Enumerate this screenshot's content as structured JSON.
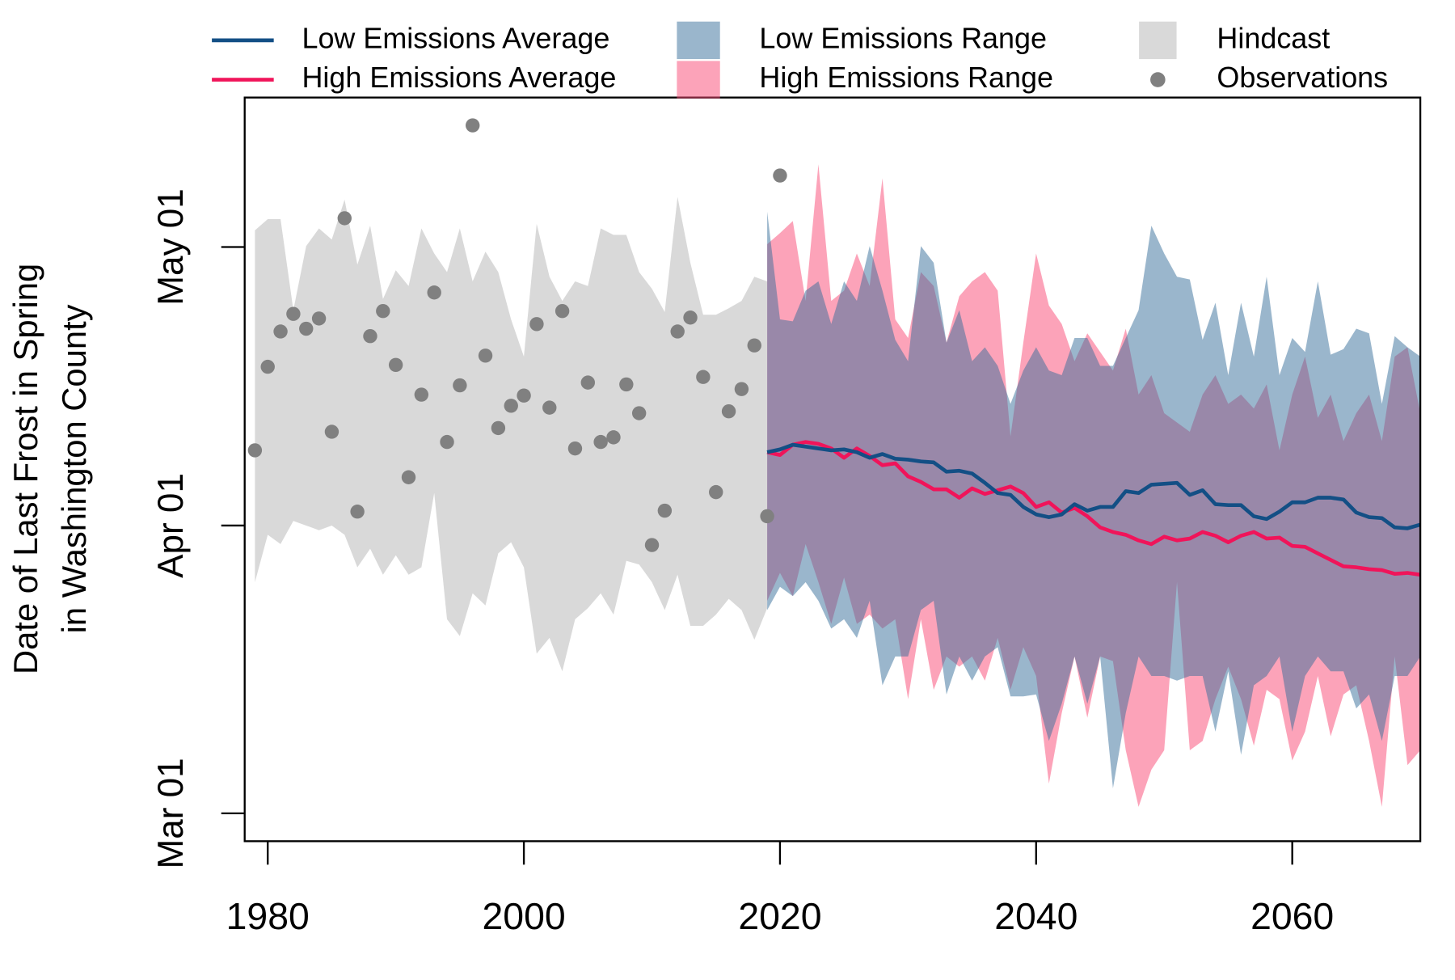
{
  "chart_data": {
    "type": "line",
    "ylabel": [
      "Date of Last Frost in Spring",
      "in Washington County"
    ],
    "xlim": [
      1978.2,
      2070
    ],
    "xticks": [
      1980,
      2000,
      2020,
      2040,
      2060
    ],
    "ylim": [
      57,
      137.1
    ],
    "yticks": [
      {
        "value": 60,
        "label": "Mar 01"
      },
      {
        "value": 91,
        "label": "Apr 01"
      },
      {
        "value": 121,
        "label": "May 01"
      }
    ],
    "series": [
      {
        "name": "Low Emissions Average",
        "type": "line",
        "color": "#134f85",
        "x": [
          2019,
          2020,
          2021,
          2022,
          2023,
          2024,
          2025,
          2026,
          2027,
          2028,
          2029,
          2030,
          2031,
          2032,
          2033,
          2034,
          2035,
          2036,
          2037,
          2038,
          2039,
          2040,
          2041,
          2042,
          2043,
          2044,
          2045,
          2046,
          2047,
          2048,
          2049,
          2050,
          2051,
          2052,
          2053,
          2054,
          2055,
          2056,
          2057,
          2058,
          2059,
          2060,
          2061,
          2062,
          2063,
          2064,
          2065,
          2066,
          2067,
          2068,
          2069,
          2070
        ],
        "values": [
          98.9,
          99.2,
          99.7,
          99.5,
          99.3,
          99.1,
          99.2,
          98.9,
          98.3,
          98.7,
          98.2,
          98.1,
          97.9,
          97.8,
          96.8,
          96.9,
          96.6,
          95.6,
          94.5,
          94.3,
          93.0,
          92.2,
          91.9,
          92.2,
          93.3,
          92.6,
          93.0,
          93.0,
          94.7,
          94.5,
          95.4,
          95.5,
          95.6,
          94.3,
          94.8,
          93.3,
          93.2,
          93.2,
          92.0,
          91.7,
          92.5,
          93.5,
          93.5,
          94.0,
          94.0,
          93.8,
          92.4,
          91.9,
          91.8,
          90.8,
          90.7,
          91.1
        ]
      },
      {
        "name": "High Emissions Average",
        "type": "line",
        "color": "#f0145a",
        "x": [
          2019,
          2020,
          2021,
          2022,
          2023,
          2024,
          2025,
          2026,
          2027,
          2028,
          2029,
          2030,
          2031,
          2032,
          2033,
          2034,
          2035,
          2036,
          2037,
          2038,
          2039,
          2040,
          2041,
          2042,
          2043,
          2044,
          2045,
          2046,
          2047,
          2048,
          2049,
          2050,
          2051,
          2052,
          2053,
          2054,
          2055,
          2056,
          2057,
          2058,
          2059,
          2060,
          2061,
          2062,
          2063,
          2064,
          2065,
          2066,
          2067,
          2068,
          2069,
          2070
        ],
        "values": [
          98.9,
          98.6,
          99.7,
          100.0,
          99.8,
          99.3,
          98.3,
          99.3,
          98.5,
          97.5,
          97.7,
          96.3,
          95.7,
          94.9,
          94.9,
          94.0,
          95.0,
          94.4,
          94.8,
          95.2,
          94.5,
          93.0,
          93.5,
          92.4,
          92.9,
          92.0,
          90.8,
          90.3,
          90.0,
          89.4,
          89.0,
          89.8,
          89.4,
          89.6,
          90.3,
          89.9,
          89.2,
          89.9,
          90.3,
          89.6,
          89.7,
          88.8,
          88.7,
          88.0,
          87.3,
          86.6,
          86.5,
          86.3,
          86.2,
          85.8,
          85.9,
          85.7
        ]
      },
      {
        "name": "Low Emissions Range",
        "type": "band",
        "color": "#356d99",
        "alpha": 0.5,
        "x": [
          2019,
          2020,
          2021,
          2022,
          2023,
          2024,
          2025,
          2026,
          2027,
          2028,
          2029,
          2030,
          2031,
          2032,
          2033,
          2034,
          2035,
          2036,
          2037,
          2038,
          2039,
          2040,
          2041,
          2042,
          2043,
          2044,
          2045,
          2046,
          2047,
          2048,
          2049,
          2050,
          2051,
          2052,
          2053,
          2054,
          2055,
          2056,
          2057,
          2058,
          2059,
          2060,
          2061,
          2062,
          2063,
          2064,
          2065,
          2066,
          2067,
          2068,
          2069,
          2070
        ],
        "upper": [
          124.8,
          113.2,
          113.0,
          116.3,
          117.3,
          112.7,
          117.3,
          115.2,
          121.1,
          116.3,
          111.0,
          108.7,
          121.1,
          119.3,
          110.7,
          114.2,
          108.7,
          110.2,
          108.2,
          104.1,
          107.7,
          110.2,
          107.7,
          107.2,
          111.2,
          111.2,
          108.2,
          108.2,
          111.2,
          114.2,
          123.3,
          120.3,
          117.8,
          117.5,
          111.0,
          115.0,
          107.2,
          115.0,
          109.2,
          117.8,
          107.2,
          111.2,
          109.7,
          117.3,
          109.4,
          110.0,
          112.2,
          111.7,
          104.1,
          111.4,
          110.2,
          109.2
        ],
        "lower": [
          81.9,
          84.4,
          83.4,
          84.9,
          82.9,
          79.9,
          80.9,
          78.9,
          82.9,
          73.8,
          76.9,
          76.9,
          81.9,
          82.9,
          72.8,
          76.9,
          74.3,
          76.9,
          77.9,
          72.6,
          72.6,
          72.8,
          67.8,
          71.8,
          76.9,
          71.8,
          76.9,
          62.7,
          70.8,
          76.9,
          74.8,
          74.8,
          74.3,
          74.8,
          74.8,
          68.8,
          75.3,
          66.3,
          73.8,
          74.8,
          76.9,
          68.8,
          74.8,
          76.9,
          75.3,
          75.3,
          71.3,
          72.8,
          67.8,
          74.8,
          74.8,
          76.9
        ]
      },
      {
        "name": "High Emissions Range",
        "type": "band",
        "color": "#f94773",
        "alpha": 0.5,
        "x": [
          2019,
          2020,
          2021,
          2022,
          2023,
          2024,
          2025,
          2026,
          2027,
          2028,
          2029,
          2030,
          2031,
          2032,
          2033,
          2034,
          2035,
          2036,
          2037,
          2038,
          2039,
          2040,
          2041,
          2042,
          2043,
          2044,
          2045,
          2046,
          2047,
          2048,
          2049,
          2050,
          2051,
          2052,
          2053,
          2054,
          2055,
          2056,
          2057,
          2058,
          2059,
          2060,
          2061,
          2062,
          2063,
          2064,
          2065,
          2066,
          2067,
          2068,
          2069,
          2070
        ],
        "upper": [
          121.3,
          122.5,
          123.8,
          115.2,
          129.9,
          115.2,
          116.3,
          120.3,
          116.8,
          128.4,
          113.2,
          111.2,
          118.3,
          116.8,
          110.7,
          115.7,
          117.3,
          118.3,
          116.3,
          100.6,
          110.7,
          120.3,
          114.7,
          112.7,
          108.7,
          111.7,
          109.7,
          107.7,
          112.2,
          105.1,
          107.2,
          103.1,
          102.1,
          101.1,
          105.1,
          107.2,
          104.1,
          105.1,
          103.6,
          106.2,
          99.1,
          105.1,
          109.2,
          102.6,
          105.1,
          100.1,
          103.1,
          105.1,
          100.1,
          109.2,
          110.2,
          103.1
        ],
        "lower": [
          82.9,
          85.9,
          83.4,
          89.0,
          84.9,
          80.4,
          85.4,
          80.4,
          81.4,
          79.9,
          80.9,
          72.3,
          80.9,
          73.3,
          76.9,
          75.8,
          76.9,
          74.3,
          78.9,
          73.3,
          77.9,
          74.8,
          63.2,
          70.8,
          76.9,
          70.3,
          76.9,
          76.4,
          66.8,
          60.7,
          64.7,
          66.8,
          84.9,
          66.8,
          67.8,
          72.3,
          75.8,
          72.3,
          67.3,
          73.3,
          72.3,
          65.7,
          68.8,
          74.8,
          68.3,
          72.8,
          73.8,
          67.8,
          60.7,
          76.9,
          65.2,
          66.8
        ]
      },
      {
        "name": "Hindcast",
        "type": "band",
        "color": "#d9d9d9",
        "alpha": 1,
        "x": [
          1979,
          1980,
          1981,
          1982,
          1983,
          1984,
          1985,
          1986,
          1987,
          1988,
          1989,
          1990,
          1991,
          1992,
          1993,
          1994,
          1995,
          1996,
          1997,
          1998,
          1999,
          2000,
          2001,
          2002,
          2003,
          2004,
          2005,
          2006,
          2007,
          2008,
          2009,
          2010,
          2011,
          2012,
          2013,
          2014,
          2015,
          2016,
          2017,
          2018,
          2019
        ],
        "upper": [
          122.8,
          124.0,
          124.0,
          114.2,
          121.1,
          123.0,
          121.8,
          126.1,
          119.1,
          123.3,
          115.4,
          118.5,
          116.8,
          123.0,
          120.3,
          118.3,
          123.0,
          117.3,
          120.5,
          118.3,
          113.2,
          109.2,
          123.5,
          117.8,
          115.2,
          117.3,
          116.8,
          123.0,
          122.3,
          122.3,
          118.3,
          116.5,
          114.0,
          126.4,
          119.3,
          113.7,
          113.7,
          114.4,
          115.2,
          117.8,
          117.3
        ],
        "lower": [
          84.9,
          90.0,
          89.0,
          91.5,
          91.0,
          90.5,
          91.0,
          90.0,
          86.5,
          88.5,
          85.7,
          87.8,
          85.7,
          86.5,
          94.5,
          80.9,
          79.1,
          83.7,
          82.4,
          88.0,
          89.2,
          86.5,
          77.2,
          78.9,
          75.3,
          80.9,
          82.1,
          83.7,
          81.4,
          87.2,
          86.8,
          84.9,
          81.9,
          85.7,
          80.2,
          80.2,
          81.4,
          83.1,
          81.9,
          78.7,
          82.1
        ]
      },
      {
        "name": "Observations",
        "type": "points",
        "color": "#808080",
        "x": [
          1979,
          1980,
          1981,
          1982,
          1983,
          1984,
          1985,
          1986,
          1987,
          1988,
          1989,
          1990,
          1991,
          1992,
          1993,
          1994,
          1995,
          1996,
          1997,
          1998,
          1999,
          2000,
          2001,
          2002,
          2003,
          2004,
          2005,
          2006,
          2007,
          2008,
          2009,
          2010,
          2011,
          2012,
          2013,
          2014,
          2015,
          2016,
          2017,
          2018,
          2019,
          2020
        ],
        "values": [
          99.1,
          108.1,
          111.9,
          113.8,
          112.2,
          113.3,
          101.1,
          124.1,
          92.5,
          111.4,
          114.1,
          108.3,
          96.2,
          105.1,
          116.1,
          100.0,
          106.1,
          134.1,
          109.3,
          101.5,
          103.9,
          105.0,
          112.7,
          103.7,
          114.1,
          99.3,
          106.4,
          100.0,
          100.5,
          106.2,
          103.1,
          88.9,
          92.6,
          111.9,
          113.4,
          107.0,
          94.6,
          103.3,
          105.7,
          110.4,
          92.0,
          128.7
        ]
      }
    ]
  }
}
